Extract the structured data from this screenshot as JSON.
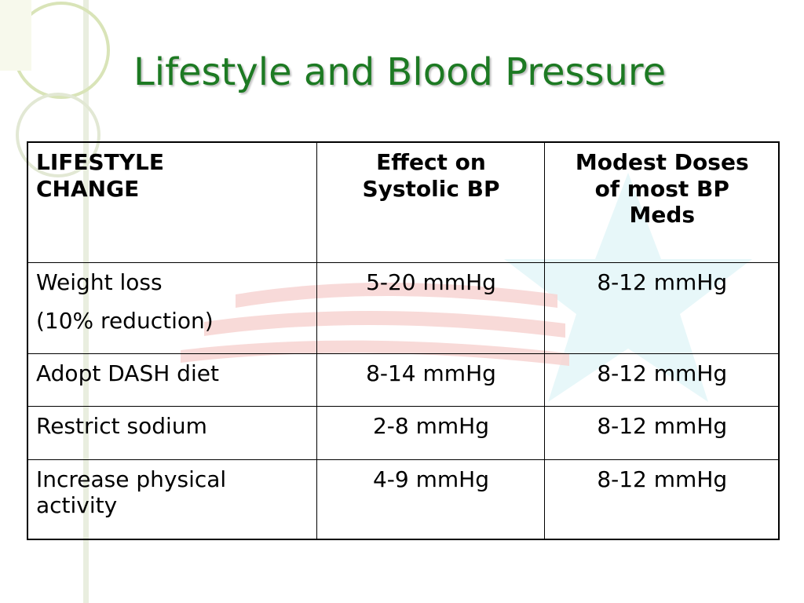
{
  "slide": {
    "title": "Lifestyle and Blood Pressure"
  },
  "table": {
    "headers": [
      {
        "line1": "LIFESTYLE",
        "line2": "CHANGE"
      },
      {
        "line1": "Effect on",
        "line2": "Systolic BP"
      },
      {
        "line1": "Modest Doses",
        "line2": "of most BP",
        "line3": "Meds"
      }
    ],
    "rows": [
      {
        "change_line1": "Weight loss",
        "change_line2": "(10% reduction)",
        "effect": "5-20 mmHg",
        "meds": "8-12 mmHg"
      },
      {
        "change_line1": "Adopt DASH diet",
        "effect": "8-14 mmHg",
        "meds": "8-12 mmHg"
      },
      {
        "change_line1": "Restrict sodium",
        "effect": "2-8 mmHg",
        "meds": "8-12 mmHg"
      },
      {
        "change_line1": "Increase physical",
        "change_line2": "activity",
        "effect": "4-9 mmHg",
        "meds": "8-12 mmHg"
      }
    ]
  },
  "colors": {
    "title": "#1d7a23",
    "flag_stripe": "#f7d4d2",
    "star": "#e4f6f8",
    "deco_ring": "#d9e4b8"
  }
}
